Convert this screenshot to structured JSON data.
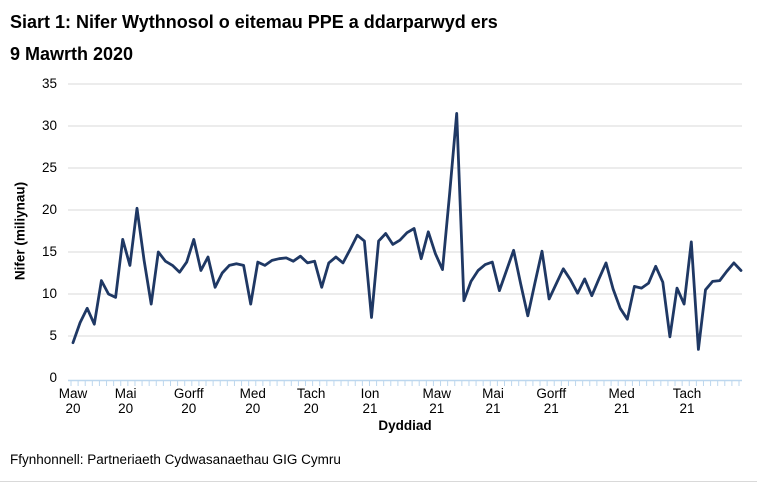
{
  "title": {
    "line1": "Siart 1: Nifer Wythnosol o eitemau PPE a ddarparwyd ers",
    "line2": "9 Mawrth 2020"
  },
  "footer": {
    "source": "Ffynhonnell: Partneriaeth Cydwasanaethau GIG Cymru"
  },
  "colors": {
    "line": "#1F3864",
    "gridline": "#D9D9D9",
    "axis_line": "#BDD7EE",
    "minor_tick": "#BDD7EE",
    "text": "#000000"
  },
  "chart_data": {
    "type": "line",
    "title": "Siart 1: Nifer Wythnosol o eitemau PPE a ddarparwyd ers 9 Mawrth 2020",
    "xlabel": "Dyddiad",
    "ylabel": "Nifer (miliynau)",
    "ylim": [
      0,
      35
    ],
    "yticks": [
      0,
      5,
      10,
      15,
      20,
      25,
      30,
      35
    ],
    "grid": "horizontal",
    "legend": "none",
    "x_frequency": "weekly",
    "x_start": "Maw 20",
    "xticks": [
      {
        "month": "Maw",
        "year": "20",
        "week": 0
      },
      {
        "month": "Mai",
        "year": "20",
        "week": 7.4
      },
      {
        "month": "Gorff",
        "year": "20",
        "week": 16.3
      },
      {
        "month": "Med",
        "year": "20",
        "week": 25.3
      },
      {
        "month": "Tach",
        "year": "20",
        "week": 33.5
      },
      {
        "month": "Ion",
        "year": "21",
        "week": 41.8
      },
      {
        "month": "Maw",
        "year": "21",
        "week": 51.2
      },
      {
        "month": "Mai",
        "year": "21",
        "week": 59.1
      },
      {
        "month": "Gorff",
        "year": "21",
        "week": 67.3
      },
      {
        "month": "Med",
        "year": "21",
        "week": 77.2
      },
      {
        "month": "Tach",
        "year": "21",
        "week": 86.4
      }
    ],
    "values": [
      4.2,
      6.6,
      8.3,
      6.4,
      11.6,
      10.0,
      9.6,
      16.5,
      13.4,
      20.2,
      14.0,
      8.8,
      15.0,
      13.9,
      13.4,
      12.6,
      13.8,
      16.5,
      12.8,
      14.4,
      10.8,
      12.5,
      13.4,
      13.6,
      13.4,
      8.8,
      13.8,
      13.4,
      14.0,
      14.2,
      14.3,
      13.9,
      14.5,
      13.7,
      13.9,
      10.8,
      13.7,
      14.4,
      13.7,
      15.3,
      17.0,
      16.3,
      7.2,
      16.3,
      17.2,
      15.9,
      16.4,
      17.3,
      17.8,
      14.2,
      17.4,
      14.8,
      12.9,
      21.9,
      31.5,
      9.2,
      11.5,
      12.8,
      13.5,
      13.8,
      10.4,
      12.8,
      15.2,
      11.2,
      7.4,
      11.3,
      15.1,
      9.4,
      11.2,
      13.0,
      11.7,
      10.1,
      11.8,
      9.8,
      11.8,
      13.7,
      10.6,
      8.3,
      7.0,
      10.9,
      10.7,
      11.3,
      13.3,
      11.4,
      4.9,
      10.7,
      8.8,
      16.2,
      3.4,
      10.5,
      11.5,
      11.6,
      12.7,
      13.7,
      12.8
    ]
  }
}
